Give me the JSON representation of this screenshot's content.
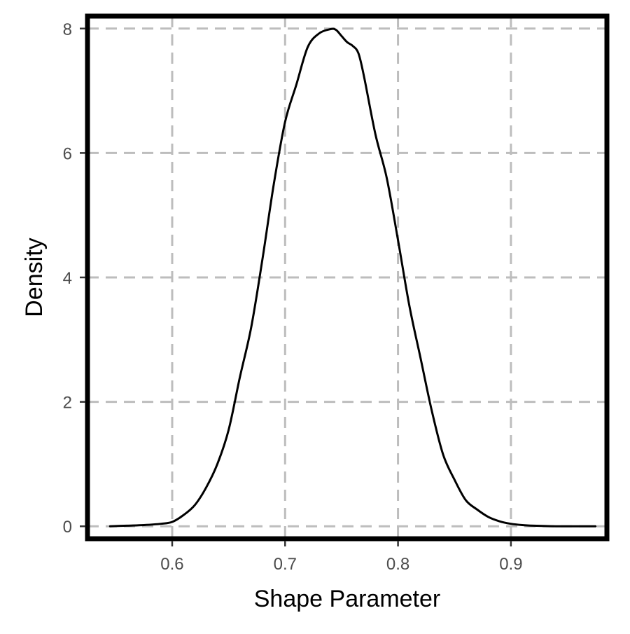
{
  "chart_data": {
    "type": "line",
    "title": "",
    "xlabel": "Shape Parameter",
    "ylabel": "Density",
    "xlim": [
      0.525,
      0.985
    ],
    "ylim": [
      -0.2,
      8.2
    ],
    "x_ticks": [
      0.6,
      0.7,
      0.8,
      0.9
    ],
    "x_tick_labels": [
      "0.6",
      "0.7",
      "0.8",
      "0.9"
    ],
    "x_minor_ticks": [
      0.55,
      0.65,
      0.75,
      0.85,
      0.95
    ],
    "y_ticks": [
      0,
      2,
      4,
      6,
      8
    ],
    "y_tick_labels": [
      "0",
      "2",
      "4",
      "6",
      "8"
    ],
    "y_minor_ticks": [
      1,
      3,
      5,
      7
    ],
    "grid": true,
    "grid_style": "dashed",
    "legend": "none",
    "colors": {
      "line": "#000000",
      "grid": "#bdbdbd",
      "border": "#000000",
      "tick_label": "#4d4d4d"
    },
    "series": [
      {
        "x": [
          0.545,
          0.56,
          0.575,
          0.59,
          0.6,
          0.61,
          0.62,
          0.63,
          0.64,
          0.65,
          0.66,
          0.67,
          0.68,
          0.69,
          0.7,
          0.71,
          0.72,
          0.73,
          0.74,
          0.745,
          0.75,
          0.755,
          0.76,
          0.765,
          0.77,
          0.78,
          0.79,
          0.8,
          0.81,
          0.82,
          0.83,
          0.84,
          0.85,
          0.86,
          0.87,
          0.88,
          0.89,
          0.9,
          0.91,
          0.92,
          0.94,
          0.955,
          0.975
        ],
        "y": [
          0.0,
          0.01,
          0.02,
          0.04,
          0.07,
          0.18,
          0.34,
          0.62,
          1.0,
          1.55,
          2.4,
          3.2,
          4.3,
          5.5,
          6.5,
          7.1,
          7.7,
          7.92,
          7.99,
          7.98,
          7.88,
          7.78,
          7.72,
          7.6,
          7.22,
          6.3,
          5.6,
          4.6,
          3.55,
          2.7,
          1.85,
          1.15,
          0.75,
          0.42,
          0.27,
          0.15,
          0.08,
          0.04,
          0.02,
          0.01,
          0.0,
          0.0,
          0.0
        ]
      }
    ]
  }
}
